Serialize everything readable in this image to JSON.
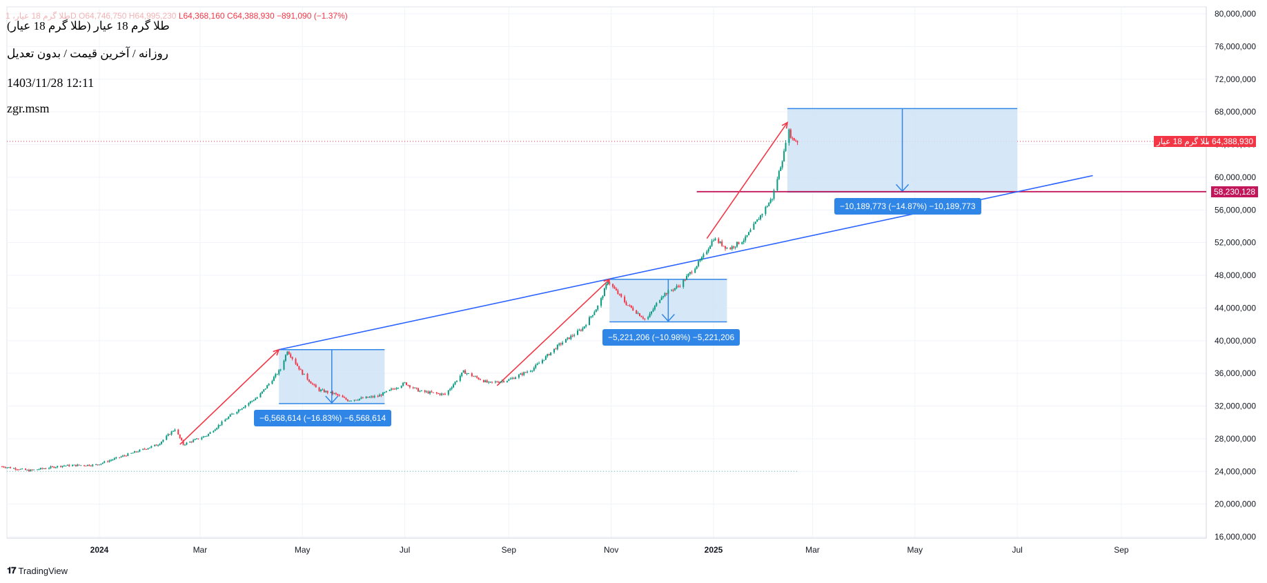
{
  "legend": {
    "symbol_faint": "طلا گرم 18 عیار، 1D",
    "open": "O64,746,750",
    "high": "H64,995,230",
    "low": "L64,368,160",
    "close": "C64,388,930",
    "change": "−891,090 (−1.37%)"
  },
  "header": {
    "title": "طلا گرم 18 عیار (طلا گرم 18 عیار)",
    "subtitle": "روزانه / آخرین قیمت / بدون تعدیل",
    "datetime": "1403/11/28 12:11",
    "author": "zgr.msm"
  },
  "price_tags": {
    "current_name": "طلا گرم 18 عیار",
    "current_value": "64,388,930",
    "level_value": "58,230,128"
  },
  "measures": [
    {
      "label": "−6,568,614 (−16.83%) −6,568,614"
    },
    {
      "label": "−5,221,206 (−10.98%) −5,221,206"
    },
    {
      "label": "−10,189,773 (−14.87%) −10,189,773"
    }
  ],
  "brand": {
    "name": "TradingView"
  },
  "colors": {
    "up": "#089981",
    "down": "#f23645",
    "trend_blue": "#2962ff",
    "trend_red": "#f23645",
    "measure_fill": "#cfe3f7",
    "measure_stroke": "#2f86e6",
    "level_line": "#c2185b"
  },
  "chart_data": {
    "type": "candlestick",
    "x_ticks": [
      "2024",
      "Mar",
      "May",
      "Jul",
      "Sep",
      "Nov",
      "2025",
      "Mar",
      "May",
      "Jul",
      "Sep"
    ],
    "y_ticks": [
      "80,000,000",
      "76,000,000",
      "72,000,000",
      "68,000,000",
      "64,000,000",
      "60,000,000",
      "56,000,000",
      "52,000,000",
      "48,000,000",
      "44,000,000",
      "40,000,000",
      "36,000,000",
      "32,000,000",
      "28,000,000",
      "24,000,000",
      "20,000,000",
      "16,000,000"
    ],
    "ylim": [
      15500000,
      81000000
    ],
    "x_domain": [
      "2023-11-04",
      "2025-11-24"
    ],
    "current_price": 64388930,
    "level_price": 58230128,
    "close_path": [
      {
        "date": "2023-11-04",
        "price": 24600000
      },
      {
        "date": "2023-11-20",
        "price": 24100000
      },
      {
        "date": "2023-12-10",
        "price": 24700000
      },
      {
        "date": "2023-12-30",
        "price": 24800000
      },
      {
        "date": "2024-01-20",
        "price": 26200000
      },
      {
        "date": "2024-02-05",
        "price": 27300000
      },
      {
        "date": "2024-02-15",
        "price": 29200000
      },
      {
        "date": "2024-02-20",
        "price": 27300000
      },
      {
        "date": "2024-03-05",
        "price": 28400000
      },
      {
        "date": "2024-03-20",
        "price": 31000000
      },
      {
        "date": "2024-04-05",
        "price": 33200000
      },
      {
        "date": "2024-04-18",
        "price": 36500000
      },
      {
        "date": "2024-04-22",
        "price": 38800000
      },
      {
        "date": "2024-05-01",
        "price": 36000000
      },
      {
        "date": "2024-05-10",
        "price": 34000000
      },
      {
        "date": "2024-05-20",
        "price": 33500000
      },
      {
        "date": "2024-05-28",
        "price": 32700000
      },
      {
        "date": "2024-06-15",
        "price": 33200000
      },
      {
        "date": "2024-07-01",
        "price": 34800000
      },
      {
        "date": "2024-07-10",
        "price": 33800000
      },
      {
        "date": "2024-07-25",
        "price": 33400000
      },
      {
        "date": "2024-08-05",
        "price": 36200000
      },
      {
        "date": "2024-08-20",
        "price": 34800000
      },
      {
        "date": "2024-09-01",
        "price": 35200000
      },
      {
        "date": "2024-09-15",
        "price": 36500000
      },
      {
        "date": "2024-10-01",
        "price": 39500000
      },
      {
        "date": "2024-10-15",
        "price": 41500000
      },
      {
        "date": "2024-10-25",
        "price": 44500000
      },
      {
        "date": "2024-10-30",
        "price": 47300000
      },
      {
        "date": "2024-11-10",
        "price": 44500000
      },
      {
        "date": "2024-11-22",
        "price": 42500000
      },
      {
        "date": "2024-12-01",
        "price": 45500000
      },
      {
        "date": "2024-12-12",
        "price": 46800000
      },
      {
        "date": "2024-12-25",
        "price": 50000000
      },
      {
        "date": "2025-01-01",
        "price": 52500000
      },
      {
        "date": "2025-01-10",
        "price": 51200000
      },
      {
        "date": "2025-01-20",
        "price": 52500000
      },
      {
        "date": "2025-01-28",
        "price": 55000000
      },
      {
        "date": "2025-02-05",
        "price": 57500000
      },
      {
        "date": "2025-02-12",
        "price": 63000000
      },
      {
        "date": "2025-02-14",
        "price": 66000000
      },
      {
        "date": "2025-02-17",
        "price": 64700000
      },
      {
        "date": "2025-02-20",
        "price": 64400000
      }
    ],
    "trendlines": [
      {
        "color": "blue",
        "from": {
          "date": "2024-04-17",
          "price": 38900000
        },
        "to": {
          "date": "2025-08-15",
          "price": 60200000
        }
      },
      {
        "color": "red",
        "from": {
          "date": "2024-02-18",
          "price": 27300000
        },
        "to": {
          "date": "2024-04-17",
          "price": 38900000
        }
      },
      {
        "color": "red",
        "from": {
          "date": "2024-08-25",
          "price": 34500000
        },
        "to": {
          "date": "2024-10-31",
          "price": 47500000
        }
      },
      {
        "color": "red",
        "from": {
          "date": "2024-12-28",
          "price": 52500000
        },
        "to": {
          "date": "2025-02-14",
          "price": 66700000
        }
      }
    ],
    "measure_boxes": [
      {
        "from_date": "2024-04-17",
        "to_date": "2024-06-19",
        "top": 38900000,
        "bottom": 32300000
      },
      {
        "from_date": "2024-10-31",
        "to_date": "2025-01-09",
        "top": 47500000,
        "bottom": 42300000
      },
      {
        "from_date": "2025-02-14",
        "to_date": "2025-07-01",
        "top": 68400000,
        "bottom": 58200000
      }
    ]
  }
}
